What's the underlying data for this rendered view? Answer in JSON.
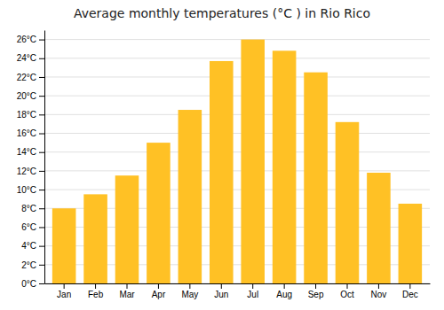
{
  "chart_data": {
    "type": "bar",
    "title": "Average monthly temperatures (°C ) in Rio Rico",
    "categories": [
      "Jan",
      "Feb",
      "Mar",
      "Apr",
      "May",
      "Jun",
      "Jul",
      "Aug",
      "Sep",
      "Oct",
      "Nov",
      "Dec"
    ],
    "values": [
      8.0,
      9.5,
      11.5,
      15.0,
      18.5,
      23.7,
      26.0,
      24.8,
      22.5,
      17.2,
      11.8,
      8.5
    ],
    "color": "#FFC125",
    "ylim": [
      0,
      27
    ],
    "yticks": [
      {
        "value": 0,
        "label": "0°C"
      },
      {
        "value": 2,
        "label": "2°C"
      },
      {
        "value": 4,
        "label": "4°C"
      },
      {
        "value": 6,
        "label": "6°C"
      },
      {
        "value": 8,
        "label": "8°C"
      },
      {
        "value": 10,
        "label": "10°C"
      },
      {
        "value": 12,
        "label": "12°C"
      },
      {
        "value": 14,
        "label": "14°C"
      },
      {
        "value": 16,
        "label": "16°C"
      },
      {
        "value": 18,
        "label": "18°C"
      },
      {
        "value": 20,
        "label": "20°C"
      },
      {
        "value": 22,
        "label": "22°C"
      },
      {
        "value": 24,
        "label": "24°C"
      },
      {
        "value": 26,
        "label": "26°C"
      }
    ],
    "grid": true
  }
}
